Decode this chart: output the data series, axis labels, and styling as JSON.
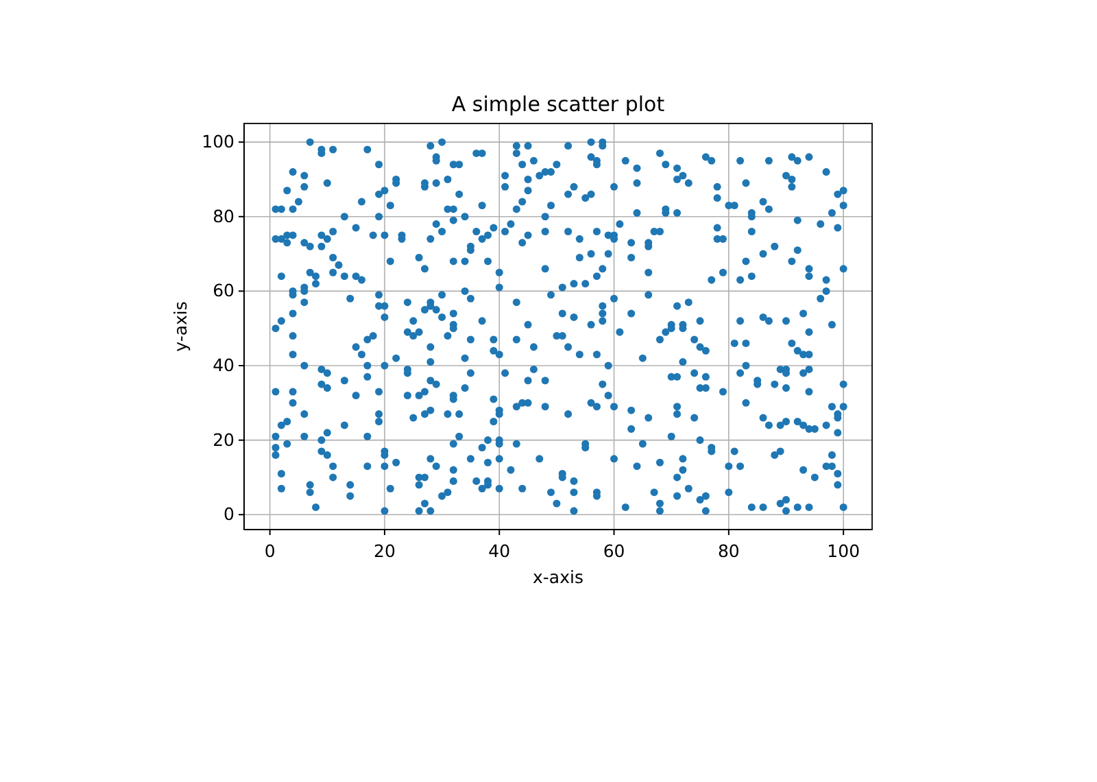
{
  "chart_data": {
    "type": "scatter",
    "title": "A simple scatter plot",
    "xlabel": "x-axis",
    "ylabel": "y-axis",
    "color": "#1f77b4",
    "marker": "circle",
    "grid": true,
    "xlim": [
      -4.5,
      105
    ],
    "ylim": [
      -4,
      105
    ],
    "xticks": [
      0,
      20,
      40,
      60,
      80,
      100
    ],
    "yticks": [
      0,
      20,
      40,
      60,
      80,
      100
    ],
    "x": [
      7,
      9,
      9,
      11,
      17,
      19,
      28,
      30,
      29,
      29,
      32,
      33,
      4,
      6,
      6,
      10,
      3,
      22,
      22,
      27,
      27,
      29,
      31,
      33,
      20,
      19,
      5,
      16,
      21,
      1,
      2,
      4,
      31,
      32,
      13,
      19,
      32,
      29,
      15,
      11,
      3,
      4,
      18,
      20,
      23,
      23,
      1,
      2,
      3,
      6,
      7,
      9,
      10,
      9,
      28,
      30,
      11,
      12,
      11,
      21,
      26,
      27,
      32,
      2,
      7,
      8,
      8,
      13,
      15,
      16,
      14,
      4,
      4,
      6,
      6,
      6,
      4,
      2,
      19,
      19,
      20,
      20,
      24,
      25,
      27,
      28,
      28,
      29,
      30,
      30,
      32,
      32,
      36,
      37,
      43,
      43,
      45,
      44,
      46,
      52,
      56,
      58,
      58,
      56,
      57,
      57,
      62,
      68,
      69,
      64,
      50,
      47,
      48,
      49,
      41,
      41,
      45,
      45,
      53,
      52,
      55,
      56,
      60,
      64,
      44,
      49,
      37,
      43,
      34,
      48,
      64,
      69,
      69,
      36,
      37,
      38,
      39,
      41,
      42,
      44,
      45,
      48,
      52,
      54,
      57,
      59,
      60,
      60,
      61,
      67,
      68,
      63,
      66,
      66,
      35,
      35,
      54,
      56,
      59,
      63,
      34,
      38,
      40,
      40,
      48,
      57,
      58,
      66,
      53,
      55,
      51,
      60,
      49,
      34,
      35,
      43,
      66,
      51,
      53,
      58,
      58,
      58,
      63,
      56,
      37,
      45,
      71,
      72,
      71,
      73,
      76,
      77,
      82,
      87,
      91,
      92,
      94,
      97,
      90,
      91,
      91,
      83,
      78,
      78,
      99,
      100,
      100,
      80,
      81,
      86,
      87,
      84,
      84,
      71,
      98,
      92,
      96,
      99,
      78,
      78,
      79,
      84,
      88,
      86,
      83,
      92,
      91,
      94,
      94,
      100,
      97,
      79,
      77,
      82,
      84,
      97,
      96,
      71,
      73,
      75,
      70,
      72,
      82,
      86,
      87,
      90,
      93,
      98,
      1,
      4,
      4,
      6,
      9,
      10,
      9,
      10,
      13,
      15,
      16,
      17,
      18,
      17,
      17,
      20,
      19,
      15,
      22,
      24,
      25,
      26,
      24,
      24,
      28,
      28,
      28,
      29,
      31,
      32,
      32,
      32,
      1,
      4,
      4,
      6,
      2,
      3,
      1,
      1,
      1,
      3,
      6,
      9,
      9,
      10,
      10,
      13,
      11,
      11,
      7,
      7,
      8,
      2,
      2,
      14,
      14,
      17,
      17,
      19,
      19,
      20,
      20,
      20,
      22,
      21,
      20,
      24,
      25,
      26,
      27,
      27,
      28,
      31,
      32,
      33,
      28,
      26,
      27,
      26,
      29,
      32,
      32,
      31,
      30,
      26,
      27,
      28,
      35,
      39,
      39,
      40,
      43,
      46,
      50,
      51,
      52,
      54,
      57,
      61,
      59,
      65,
      68,
      69,
      70,
      34,
      35,
      34,
      33,
      41,
      45,
      46,
      48,
      39,
      40,
      40,
      39,
      43,
      44,
      45,
      48,
      52,
      56,
      57,
      58,
      59,
      60,
      63,
      63,
      66,
      70,
      70,
      35,
      37,
      38,
      38,
      40,
      40,
      40,
      36,
      37,
      38,
      38,
      40,
      42,
      43,
      44,
      47,
      49,
      50,
      51,
      51,
      53,
      53,
      53,
      55,
      55,
      57,
      57,
      60,
      62,
      64,
      65,
      67,
      68,
      68,
      68,
      72,
      74,
      75,
      76,
      72,
      71,
      74,
      76,
      75,
      76,
      79,
      81,
      83,
      83,
      91,
      92,
      93,
      94,
      94,
      82,
      85,
      85,
      88,
      90,
      89,
      90,
      90,
      93,
      94,
      94,
      100,
      83,
      71,
      71,
      74,
      86,
      87,
      89,
      90,
      92,
      93,
      94,
      95,
      97,
      98,
      99,
      99,
      100,
      99,
      75,
      77,
      77,
      81,
      72,
      72,
      71,
      80,
      82,
      88,
      89,
      93,
      95,
      98,
      97,
      98,
      99,
      99,
      71,
      73,
      75,
      76,
      76,
      80,
      84,
      86,
      89,
      90,
      90,
      92,
      94,
      100
    ],
    "values": [
      100,
      98,
      97,
      98,
      98,
      94,
      99,
      100,
      96,
      95,
      94,
      94,
      92,
      91,
      88,
      89,
      87,
      90,
      89,
      89,
      88,
      89,
      90,
      86,
      87,
      86,
      84,
      84,
      83,
      82,
      82,
      82,
      82,
      82,
      80,
      80,
      79,
      78,
      77,
      76,
      75,
      75,
      75,
      75,
      75,
      74,
      74,
      74,
      73,
      73,
      72,
      75,
      74,
      72,
      74,
      76,
      69,
      67,
      65,
      68,
      69,
      66,
      68,
      64,
      65,
      64,
      62,
      64,
      64,
      63,
      58,
      60,
      59,
      61,
      60,
      57,
      54,
      52,
      59,
      56,
      56,
      53,
      57,
      52,
      55,
      57,
      56,
      55,
      59,
      53,
      51,
      54,
      97,
      97,
      99,
      97,
      99,
      94,
      95,
      99,
      100,
      100,
      99,
      96,
      95,
      94,
      95,
      97,
      94,
      93,
      94,
      91,
      92,
      92,
      91,
      88,
      90,
      87,
      88,
      86,
      85,
      86,
      88,
      89,
      84,
      83,
      83,
      82,
      80,
      80,
      81,
      82,
      81,
      76,
      74,
      75,
      77,
      76,
      78,
      73,
      75,
      76,
      76,
      74,
      76,
      75,
      75,
      74,
      78,
      76,
      76,
      73,
      73,
      72,
      72,
      71,
      69,
      70,
      70,
      69,
      68,
      68,
      65,
      61,
      66,
      64,
      66,
      65,
      62,
      62,
      61,
      58,
      59,
      60,
      58,
      57,
      59,
      54,
      53,
      56,
      54,
      52,
      54,
      51,
      52,
      51,
      93,
      91,
      90,
      89,
      96,
      95,
      95,
      95,
      96,
      95,
      96,
      92,
      91,
      90,
      88,
      89,
      88,
      85,
      86,
      87,
      83,
      83,
      83,
      84,
      82,
      81,
      80,
      81,
      81,
      79,
      78,
      77,
      77,
      74,
      74,
      76,
      72,
      70,
      68,
      71,
      68,
      66,
      64,
      66,
      63,
      65,
      63,
      63,
      64,
      60,
      58,
      56,
      57,
      52,
      51,
      51,
      52,
      53,
      52,
      52,
      54,
      51,
      50,
      48,
      43,
      40,
      39,
      38,
      35,
      34,
      36,
      45,
      43,
      47,
      48,
      40,
      37,
      40,
      33,
      32,
      42,
      49,
      48,
      49,
      39,
      38,
      45,
      41,
      36,
      35,
      48,
      50,
      32,
      31,
      33,
      33,
      30,
      27,
      24,
      25,
      21,
      18,
      16,
      19,
      21,
      20,
      17,
      16,
      22,
      24,
      13,
      10,
      8,
      6,
      2,
      11,
      7,
      8,
      5,
      21,
      13,
      27,
      25,
      17,
      16,
      13,
      14,
      7,
      1,
      32,
      26,
      32,
      33,
      27,
      28,
      27,
      19,
      21,
      15,
      10,
      10,
      8,
      13,
      12,
      9,
      6,
      5,
      1,
      3,
      1,
      47,
      47,
      44,
      43,
      47,
      45,
      48,
      48,
      45,
      43,
      43,
      49,
      40,
      42,
      47,
      49,
      50,
      42,
      38,
      34,
      27,
      38,
      36,
      39,
      36,
      31,
      28,
      27,
      25,
      29,
      30,
      30,
      29,
      27,
      30,
      29,
      35,
      32,
      29,
      28,
      23,
      26,
      37,
      21,
      15,
      18,
      20,
      14,
      20,
      19,
      15,
      9,
      7,
      9,
      8,
      7,
      12,
      19,
      7,
      15,
      6,
      3,
      11,
      10,
      9,
      6,
      1,
      19,
      18,
      6,
      5,
      15,
      2,
      13,
      19,
      6,
      14,
      3,
      1,
      50,
      47,
      45,
      44,
      41,
      37,
      38,
      37,
      34,
      34,
      33,
      46,
      46,
      40,
      46,
      44,
      43,
      43,
      49,
      38,
      36,
      35,
      35,
      34,
      39,
      39,
      38,
      38,
      39,
      33,
      35,
      30,
      29,
      27,
      26,
      26,
      24,
      24,
      25,
      25,
      24,
      23,
      23,
      24,
      29,
      27,
      26,
      29,
      22,
      20,
      18,
      17,
      17,
      15,
      12,
      10,
      13,
      13,
      16,
      17,
      12,
      10,
      16,
      13,
      13,
      11,
      8,
      5,
      7,
      4,
      5,
      1,
      6,
      2,
      2,
      3,
      4,
      1,
      2,
      2,
      2
    ]
  }
}
